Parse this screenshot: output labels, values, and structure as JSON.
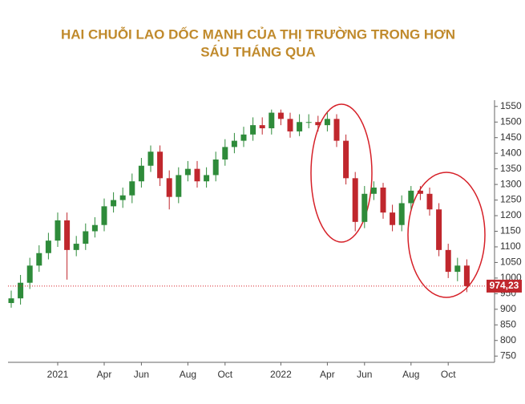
{
  "chart_data": {
    "type": "candlestick",
    "title": [
      "HAI CHUỖI LAO DỐC MẠNH CỦA THỊ TRƯỜNG TRONG HƠN",
      "SÁU THÁNG QUA"
    ],
    "categories": [
      null,
      null,
      null,
      null,
      null,
      "2021",
      null,
      null,
      null,
      null,
      "Apr",
      null,
      null,
      null,
      "Jun",
      null,
      null,
      null,
      null,
      "Aug",
      null,
      null,
      null,
      "Oct",
      null,
      null,
      null,
      null,
      null,
      "2022",
      null,
      null,
      null,
      null,
      "Apr",
      null,
      null,
      null,
      "Jun",
      null,
      null,
      null,
      null,
      "Aug",
      null,
      null,
      null,
      "Oct",
      null,
      null
    ],
    "open": [
      920,
      935,
      985,
      1040,
      1080,
      1120,
      1185,
      1090,
      1110,
      1150,
      1170,
      1230,
      1250,
      1265,
      1310,
      1360,
      1405,
      1320,
      1260,
      1330,
      1350,
      1310,
      1330,
      1380,
      1420,
      1440,
      1460,
      1490,
      1480,
      1530,
      1510,
      1470,
      1500,
      1500,
      1490,
      1510,
      1440,
      1320,
      1180,
      1270,
      1290,
      1210,
      1170,
      1240,
      1280,
      1270,
      1220,
      1090,
      1020,
      1040
    ],
    "high": [
      960,
      1010,
      1065,
      1105,
      1145,
      1210,
      1210,
      1135,
      1175,
      1195,
      1255,
      1275,
      1290,
      1335,
      1385,
      1425,
      1425,
      1345,
      1355,
      1375,
      1375,
      1355,
      1405,
      1445,
      1465,
      1485,
      1515,
      1515,
      1540,
      1540,
      1530,
      1525,
      1525,
      1520,
      1530,
      1525,
      1460,
      1340,
      1295,
      1310,
      1305,
      1235,
      1265,
      1295,
      1295,
      1290,
      1240,
      1110,
      1065,
      1060
    ],
    "low": [
      905,
      915,
      965,
      1020,
      1060,
      1100,
      995,
      1070,
      1090,
      1130,
      1150,
      1210,
      1225,
      1240,
      1290,
      1340,
      1295,
      1220,
      1240,
      1310,
      1290,
      1290,
      1310,
      1360,
      1400,
      1420,
      1440,
      1460,
      1460,
      1490,
      1450,
      1455,
      1480,
      1470,
      1470,
      1420,
      1300,
      1150,
      1160,
      1250,
      1190,
      1150,
      1150,
      1220,
      1250,
      1200,
      1070,
      1000,
      990,
      955
    ],
    "close": [
      935,
      985,
      1040,
      1080,
      1120,
      1185,
      1090,
      1110,
      1150,
      1170,
      1230,
      1250,
      1265,
      1310,
      1360,
      1405,
      1320,
      1260,
      1330,
      1350,
      1310,
      1330,
      1380,
      1420,
      1440,
      1460,
      1490,
      1480,
      1530,
      1510,
      1470,
      1500,
      1500,
      1490,
      1510,
      1440,
      1320,
      1180,
      1270,
      1290,
      1210,
      1170,
      1240,
      1280,
      1270,
      1220,
      1090,
      1020,
      1040,
      974.23
    ],
    "last_label": "974,23",
    "up_color": "#2e8b3a",
    "down_color": "#c0272d",
    "ylim": [
      730,
      1570
    ],
    "yticks": [
      750,
      800,
      850,
      900,
      950,
      1000,
      1050,
      1100,
      1150,
      1200,
      1250,
      1300,
      1350,
      1400,
      1450,
      1500,
      1550
    ]
  }
}
